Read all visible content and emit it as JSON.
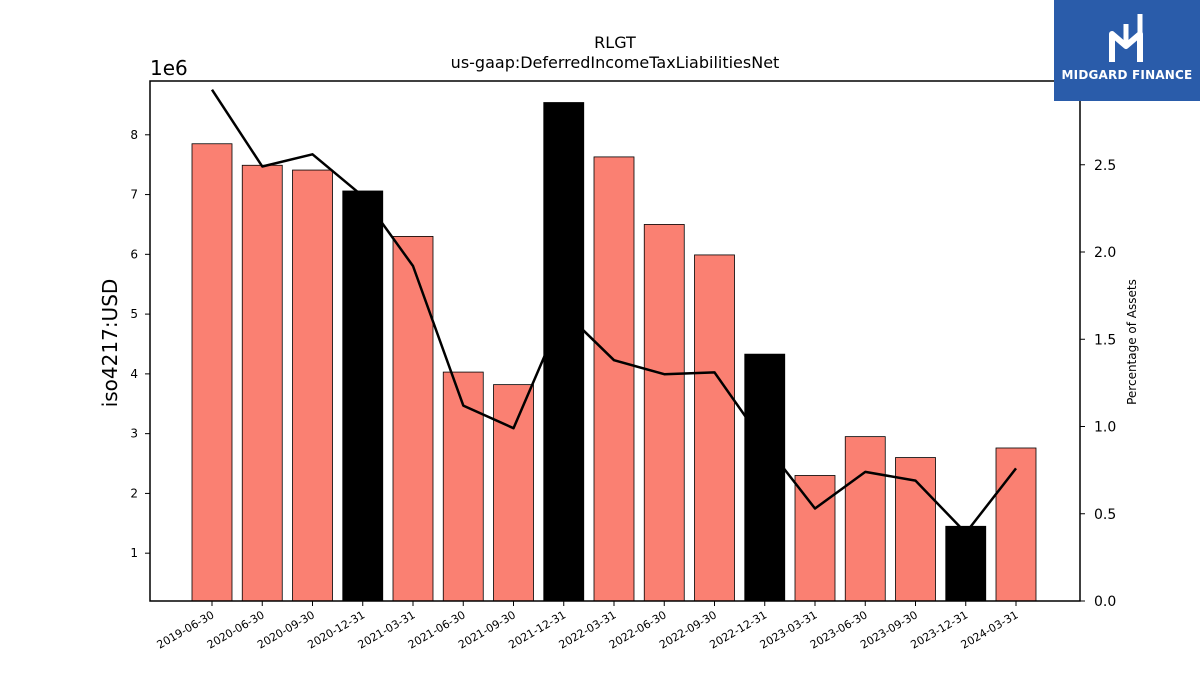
{
  "chart_data": {
    "type": "bar",
    "title": "RLGT",
    "subtitle": "us-gaap:DeferredIncomeTaxLiabilitiesNet",
    "ylabel": "iso4217:USD",
    "y2label": "Percentage of Assets",
    "y_scale_label": "1e6",
    "categories": [
      "2019-06-30",
      "2020-06-30",
      "2020-09-30",
      "2020-12-31",
      "2021-03-31",
      "2021-06-30",
      "2021-09-30",
      "2021-12-31",
      "2022-03-31",
      "2022-06-30",
      "2022-09-30",
      "2022-12-31",
      "2023-03-31",
      "2023-06-30",
      "2023-09-30",
      "2023-12-31",
      "2024-03-31"
    ],
    "values": [
      7850000,
      7490000,
      7410000,
      7060000,
      6300000,
      4030000,
      3820000,
      8540000,
      7630000,
      6500000,
      5990000,
      4330000,
      2300000,
      2950000,
      2600000,
      1450000,
      2760000
    ],
    "highlight": [
      false,
      false,
      false,
      true,
      false,
      false,
      false,
      true,
      false,
      false,
      false,
      true,
      false,
      false,
      false,
      true,
      false
    ],
    "line_values": [
      2.93,
      2.49,
      2.56,
      2.32,
      1.92,
      1.12,
      0.99,
      1.66,
      1.38,
      1.3,
      1.31,
      0.9,
      0.53,
      0.74,
      0.69,
      0.39,
      0.76
    ],
    "ylim": [
      200000,
      8900000
    ],
    "y2lim": [
      0,
      2.98
    ],
    "yticks": [
      1,
      2,
      3,
      4,
      5,
      6,
      7,
      8
    ],
    "y2ticks": [
      "0.0",
      "0.5",
      "1.0",
      "1.5",
      "2.0",
      "2.5"
    ],
    "colors": {
      "bar": "#fa8072",
      "highlight": "#000000",
      "line": "#000000"
    },
    "grid": false
  },
  "logo": {
    "text": "MIDGARD FINANCE",
    "icon": "midgard-logo-icon"
  }
}
